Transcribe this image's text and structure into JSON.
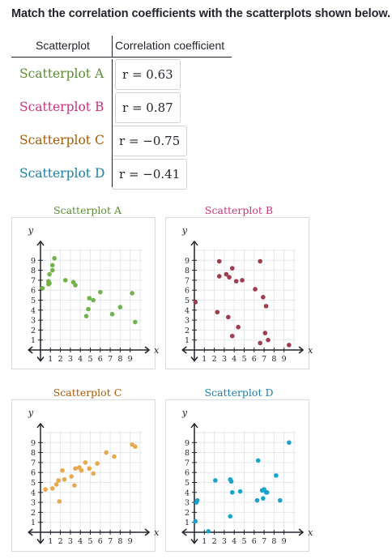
{
  "prompt": "Match the correlation coefficients with the scatterplots shown below.",
  "table": {
    "header_scatterplot": "Scatterplot",
    "header_coefficient": "Correlation coefficient",
    "rows": [
      {
        "label": "Scatterplot A",
        "coefficient": "r = 0.63",
        "color": "#5b8c33"
      },
      {
        "label": "Scatterplot B",
        "coefficient": "r = 0.87",
        "color": "#ca337c"
      },
      {
        "label": "Scatterplot C",
        "coefficient": "r = −0.75",
        "color": "#a75a05"
      },
      {
        "label": "Scatterplot D",
        "coefficient": "r = −0.41",
        "color": "#1b7ea5"
      }
    ]
  },
  "axis": {
    "x_label": "x",
    "y_label": "y"
  },
  "chart_data": [
    {
      "type": "scatter",
      "title": "Scatterplot A",
      "color": "#71b24b",
      "xlim": [
        0,
        10
      ],
      "ylim": [
        0,
        10
      ],
      "x_ticks": [
        "1",
        "2",
        "3",
        "4",
        "5",
        "6",
        "7",
        "8",
        "9"
      ],
      "y_ticks": [
        "1",
        "2",
        "3",
        "4",
        "5",
        "6",
        "7",
        "8",
        "9"
      ],
      "points": [
        [
          0.2,
          6.2
        ],
        [
          0.8,
          6.6
        ],
        [
          0.8,
          6.9
        ],
        [
          0.9,
          7.6
        ],
        [
          0.9,
          6.7
        ],
        [
          1.2,
          8.5
        ],
        [
          1.2,
          8.0
        ],
        [
          1.4,
          9.2
        ],
        [
          2.5,
          7.0
        ],
        [
          3.3,
          6.8
        ],
        [
          3.5,
          6.5
        ],
        [
          4.6,
          3.4
        ],
        [
          4.8,
          4.1
        ],
        [
          4.9,
          5.2
        ],
        [
          5.3,
          5.0
        ],
        [
          6.0,
          5.8
        ],
        [
          7.2,
          3.6
        ],
        [
          8.0,
          4.3
        ],
        [
          9.2,
          5.7
        ],
        [
          9.5,
          2.8
        ]
      ]
    },
    {
      "type": "scatter",
      "title": "Scatterplot B",
      "color": "#9e3d4e",
      "xlim": [
        0,
        10
      ],
      "ylim": [
        0,
        10
      ],
      "x_ticks": [
        "1",
        "2",
        "3",
        "4",
        "5",
        "6",
        "7",
        "8",
        "9"
      ],
      "y_ticks": [
        "1",
        "2",
        "3",
        "4",
        "5",
        "6",
        "7",
        "8",
        "9"
      ],
      "points": [
        [
          0.1,
          4.8
        ],
        [
          2.3,
          3.8
        ],
        [
          2.5,
          8.9
        ],
        [
          2.5,
          7.4
        ],
        [
          3.2,
          7.6
        ],
        [
          3.4,
          3.3
        ],
        [
          3.5,
          7.3
        ],
        [
          3.8,
          8.2
        ],
        [
          3.8,
          1.4
        ],
        [
          4.2,
          6.9
        ],
        [
          4.4,
          2.3
        ],
        [
          4.8,
          7.0
        ],
        [
          6.1,
          6.1
        ],
        [
          6.6,
          8.9
        ],
        [
          6.6,
          0.7
        ],
        [
          6.9,
          5.3
        ],
        [
          7.1,
          1.7
        ],
        [
          7.2,
          4.4
        ],
        [
          7.4,
          1.0
        ],
        [
          9.5,
          0.5
        ]
      ]
    },
    {
      "type": "scatter",
      "title": "Scatterplot C",
      "color": "#e9a84d",
      "xlim": [
        0,
        10
      ],
      "ylim": [
        0,
        10
      ],
      "x_ticks": [
        "1",
        "2",
        "3",
        "4",
        "5",
        "6",
        "7",
        "8",
        "9"
      ],
      "y_ticks": [
        "1",
        "2",
        "3",
        "4",
        "5",
        "6",
        "7",
        "8",
        "9"
      ],
      "points": [
        [
          0.5,
          4.3
        ],
        [
          1.2,
          4.4
        ],
        [
          1.6,
          4.8
        ],
        [
          1.8,
          5.2
        ],
        [
          1.9,
          3.1
        ],
        [
          2.2,
          6.2
        ],
        [
          2.4,
          5.3
        ],
        [
          3.1,
          5.6
        ],
        [
          3.4,
          4.7
        ],
        [
          3.5,
          6.4
        ],
        [
          3.9,
          6.5
        ],
        [
          4.1,
          6.2
        ],
        [
          4.5,
          7.0
        ],
        [
          4.9,
          6.4
        ],
        [
          5.3,
          5.9
        ],
        [
          5.7,
          6.9
        ],
        [
          6.6,
          8.0
        ],
        [
          7.4,
          7.6
        ],
        [
          9.2,
          8.8
        ],
        [
          9.5,
          8.6
        ]
      ]
    },
    {
      "type": "scatter",
      "title": "Scatterplot D",
      "color": "#17a3cc",
      "xlim": [
        0,
        10
      ],
      "ylim": [
        0,
        10
      ],
      "x_ticks": [
        "1",
        "2",
        "3",
        "4",
        "5",
        "6",
        "7",
        "8",
        "9"
      ],
      "y_ticks": [
        "1",
        "2",
        "3",
        "4",
        "5",
        "6",
        "7",
        "8",
        "9"
      ],
      "points": [
        [
          0.1,
          1.1
        ],
        [
          0.2,
          3.0
        ],
        [
          0.3,
          3.2
        ],
        [
          1.4,
          0.1
        ],
        [
          2.1,
          5.2
        ],
        [
          3.6,
          5.3
        ],
        [
          3.7,
          5.1
        ],
        [
          3.8,
          4.0
        ],
        [
          3.6,
          1.6
        ],
        [
          4.6,
          4.1
        ],
        [
          6.3,
          3.2
        ],
        [
          6.4,
          7.2
        ],
        [
          6.8,
          4.2
        ],
        [
          6.9,
          3.4
        ],
        [
          7.0,
          4.3
        ],
        [
          7.2,
          4.0
        ],
        [
          7.3,
          4.0
        ],
        [
          8.2,
          5.7
        ],
        [
          8.6,
          3.2
        ],
        [
          9.5,
          9.0
        ]
      ]
    }
  ]
}
